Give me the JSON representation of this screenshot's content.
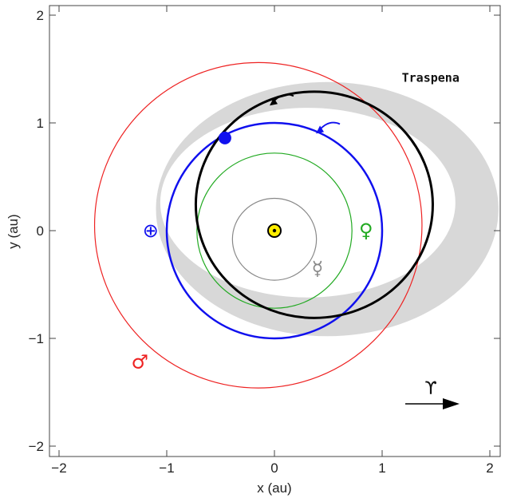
{
  "chart_data": {
    "type": "scatter",
    "xlabel": "x (au)",
    "ylabel": "y (au)",
    "xlim": [
      -2.2,
      2.0
    ],
    "ylim": [
      -2.1,
      2.1
    ],
    "x_ticks": [
      "−2",
      "−1",
      "0",
      "1",
      "2"
    ],
    "y_ticks": [
      "−2",
      "−1",
      "0",
      "1",
      "2"
    ],
    "sun": {
      "x": 0,
      "y": 0,
      "symbol": "⊙",
      "color": "#ffee00"
    },
    "orbits": [
      {
        "body": "Mercury",
        "symbol": "☿",
        "color": "#888888",
        "center": [
          0,
          -0.08
        ],
        "a": 0.39,
        "b": 0.38,
        "label_pos": [
          0.4,
          -0.35
        ]
      },
      {
        "body": "Venus",
        "symbol": "♀",
        "color": "#22aa22",
        "center": [
          0,
          0
        ],
        "a": 0.72,
        "b": 0.72,
        "label_pos": [
          0.85,
          0
        ]
      },
      {
        "body": "Earth",
        "symbol": "⊕",
        "color": "#1010ee",
        "center": [
          0,
          0
        ],
        "a": 1.0,
        "b": 1.0,
        "label_pos": [
          -1.15,
          0
        ]
      },
      {
        "body": "Mars",
        "symbol": "♂",
        "color": "#ee2222",
        "center": [
          -0.15,
          0.05
        ],
        "a": 1.52,
        "b": 1.51,
        "label_pos": [
          -1.25,
          -1.22
        ]
      }
    ],
    "object": {
      "name": "Traspena",
      "color": "#000000",
      "center": [
        0.37,
        0.24
      ],
      "a": 1.47,
      "b": 1.0,
      "rotation_deg": 0,
      "label_pos": [
        1.45,
        1.38
      ],
      "uncertainty_color": "#d8d8d8"
    },
    "earth_position": [
      -0.46,
      0.86
    ],
    "direction_arrows": [
      {
        "x": 0.0,
        "y": 1.22,
        "color": "#000000"
      },
      {
        "x": 0.43,
        "y": 0.96,
        "color": "#1010ee"
      }
    ],
    "vernal_equinox": {
      "symbol": "♈",
      "label": "ϒ"
    }
  }
}
